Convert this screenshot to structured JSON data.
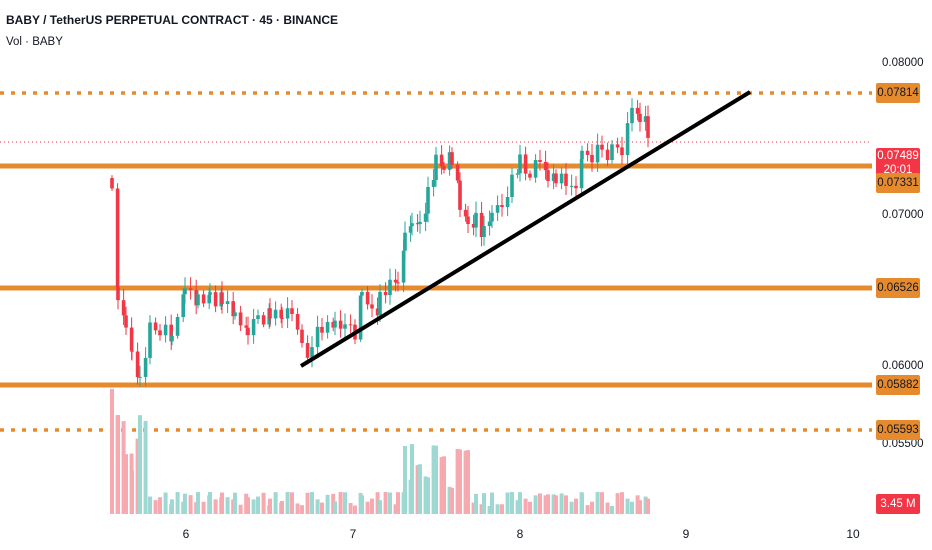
{
  "header": {
    "title": "BABY / TetherUS PERPETUAL CONTRACT · 45 · BINANCE",
    "volume_label": "Vol · BABY"
  },
  "price_axis": {
    "ticks": [
      "0.08000",
      "0.07000",
      "0.06000",
      "0.05500"
    ]
  },
  "time_axis": {
    "ticks": [
      "6",
      "7",
      "8",
      "9",
      "10"
    ]
  },
  "levels": {
    "l1": "0.07814",
    "l2": "0.07331",
    "l3": "0.06526",
    "l4": "0.05882",
    "l5": "0.05593"
  },
  "current_price": {
    "value": "0.07489",
    "countdown": "20:01"
  },
  "volume_tag": "3.45 M",
  "colors": {
    "up": "#26a69a",
    "down": "#f23645",
    "level": "#e68a2e",
    "trendline": "#000000"
  }
}
